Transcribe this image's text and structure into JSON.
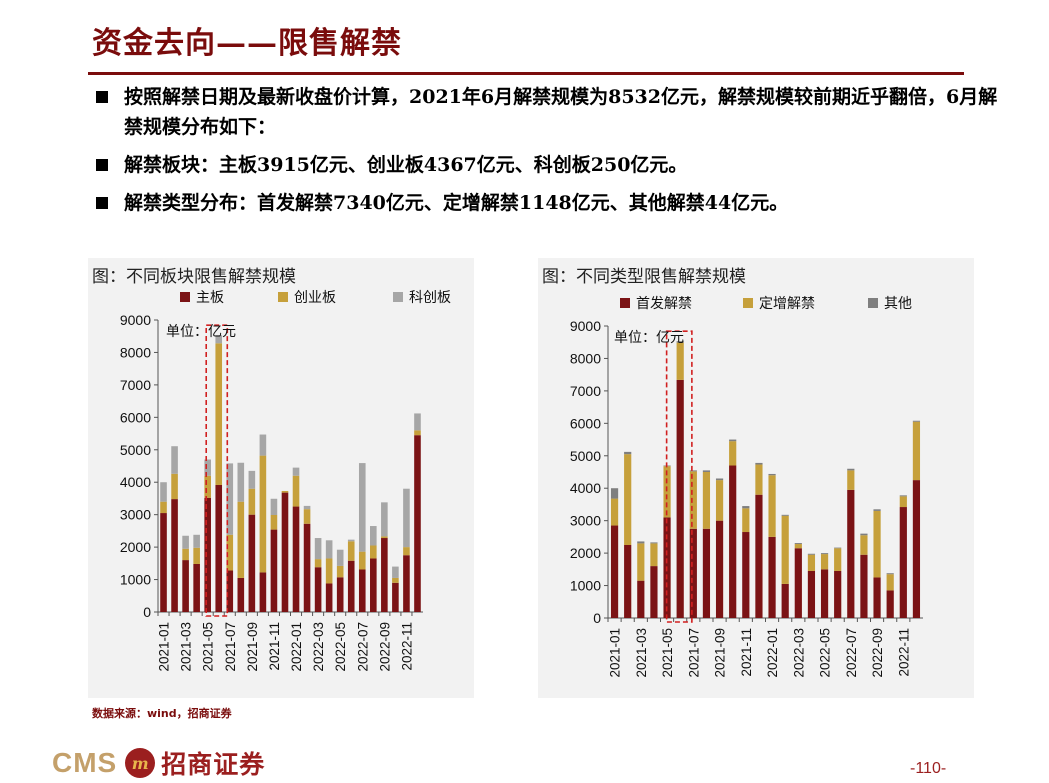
{
  "slide": {
    "title": "资金去向——限售解禁",
    "bullets": [
      "按照解禁日期及最新收盘价计算，2021年6月解禁规模为8532亿元，解禁规模较前期近乎翻倍，6月解禁规模分布如下：",
      "解禁板块：主板3915亿元、创业板4367亿元、科创板250亿元。",
      "解禁类型分布：首发解禁7340亿元、定增解禁1148亿元、其他解禁44亿元。"
    ],
    "source": "数据来源：wind，招商证券",
    "footer": {
      "logo_latin": "CMS",
      "logo_badge": "m",
      "logo_cn": "招商证券",
      "page": "-110-"
    }
  },
  "chart_data": [
    {
      "type": "bar",
      "stacked": true,
      "title": "图：不同板块限售解禁规模",
      "unit_label": "单位：亿元",
      "categories": [
        "2021-01",
        "2021-02",
        "2021-03",
        "2021-04",
        "2021-05",
        "2021-06",
        "2021-07",
        "2021-08",
        "2021-09",
        "2021-10",
        "2021-11",
        "2021-12",
        "2022-01",
        "2022-02",
        "2022-03",
        "2022-04",
        "2022-05",
        "2022-06",
        "2022-07",
        "2022-08",
        "2022-09",
        "2022-10",
        "2022-11",
        "2022-12"
      ],
      "tick_labels": [
        "2021-01",
        "2021-03",
        "2021-05",
        "2021-07",
        "2021-09",
        "2021-11",
        "2022-01",
        "2022-03",
        "2022-05",
        "2022-07",
        "2022-09",
        "2022-11"
      ],
      "series": [
        {
          "name": "主板",
          "color": "#7b1315",
          "values": [
            3050,
            3480,
            1600,
            1480,
            3520,
            3915,
            1280,
            1050,
            3000,
            1220,
            2540,
            3680,
            3250,
            2720,
            1380,
            880,
            1070,
            1580,
            1310,
            1650,
            2280,
            900,
            1750,
            5450
          ]
        },
        {
          "name": "创业板",
          "color": "#c6a03b",
          "values": [
            350,
            780,
            350,
            500,
            680,
            4367,
            1100,
            2350,
            800,
            3600,
            450,
            50,
            950,
            450,
            250,
            770,
            350,
            600,
            550,
            400,
            50,
            150,
            250,
            150
          ]
        },
        {
          "name": "科创板",
          "color": "#a6a6a6",
          "values": [
            600,
            850,
            400,
            400,
            500,
            250,
            2200,
            1200,
            550,
            650,
            500,
            0,
            250,
            100,
            650,
            560,
            500,
            50,
            2730,
            600,
            1050,
            350,
            1800,
            520
          ]
        }
      ],
      "yticks": [
        0,
        1000,
        2000,
        3000,
        4000,
        5000,
        6000,
        7000,
        8000,
        9000
      ],
      "ylim": [
        0,
        9000
      ],
      "highlight_category": "2021-06"
    },
    {
      "type": "bar",
      "stacked": true,
      "title": "图：不同类型限售解禁规模",
      "unit_label": "单位：亿元",
      "categories": [
        "2021-01",
        "2021-02",
        "2021-03",
        "2021-04",
        "2021-05",
        "2021-06",
        "2021-07",
        "2021-08",
        "2021-09",
        "2021-10",
        "2021-11",
        "2021-12",
        "2022-01",
        "2022-02",
        "2022-03",
        "2022-04",
        "2022-05",
        "2022-06",
        "2022-07",
        "2022-08",
        "2022-09",
        "2022-10",
        "2022-11",
        "2022-12"
      ],
      "tick_labels": [
        "2021-01",
        "2021-03",
        "2021-05",
        "2021-07",
        "2021-09",
        "2021-11",
        "2022-01",
        "2022-03",
        "2022-05",
        "2022-07",
        "2022-09",
        "2022-11"
      ],
      "series": [
        {
          "name": "首发解禁",
          "color": "#7b1315",
          "values": [
            2850,
            2250,
            1150,
            1600,
            3100,
            7340,
            2750,
            2750,
            3000,
            4700,
            2650,
            3800,
            2500,
            1050,
            2150,
            1450,
            1500,
            1450,
            3950,
            1950,
            1250,
            850,
            3420,
            4250
          ]
        },
        {
          "name": "定增解禁",
          "color": "#c6a03b",
          "values": [
            830,
            2800,
            1150,
            700,
            1580,
            1148,
            1770,
            1750,
            1250,
            750,
            730,
            930,
            1900,
            2100,
            130,
            500,
            470,
            700,
            600,
            600,
            2050,
            500,
            330,
            1800
          ]
        },
        {
          "name": "其他",
          "color": "#7f7f7f",
          "values": [
            320,
            70,
            60,
            30,
            20,
            44,
            30,
            50,
            50,
            50,
            70,
            50,
            40,
            30,
            30,
            30,
            30,
            20,
            50,
            50,
            50,
            30,
            30,
            30
          ]
        }
      ],
      "yticks": [
        0,
        1000,
        2000,
        3000,
        4000,
        5000,
        6000,
        7000,
        8000,
        9000
      ],
      "ylim": [
        0,
        9000
      ],
      "highlight_category": "2021-06"
    }
  ]
}
